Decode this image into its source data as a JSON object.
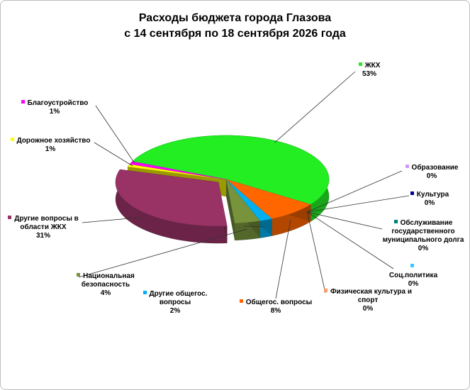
{
  "chart_data": {
    "type": "pie",
    "title": "Расходы бюджета города Глазова",
    "subtitle": "с 14 сентября по 18 сентября 2026 года",
    "categories": [
      "ЖКХ",
      "Образование",
      "Культура",
      "Обслуживание государственного муниципального долга",
      "Соц.политика",
      "Физическая культура и спорт",
      "Общегос. вопросы",
      "Другие общегос. вопросы",
      "Национальная безопасность",
      "Другие вопросы в области ЖКХ",
      "Дорожное хозяйство",
      "Благоустройство"
    ],
    "values": [
      53,
      0,
      0,
      0,
      0,
      0,
      8,
      2,
      4,
      31,
      1,
      1
    ],
    "value_labels": [
      "53%",
      "0%",
      "0%",
      "0%",
      "0%",
      "0%",
      "8%",
      "2%",
      "4%",
      "31%",
      "1%",
      "1%"
    ],
    "colors": [
      "#22ee22",
      "#cc99ff",
      "#000099",
      "#008080",
      "#33ccff",
      "#ff9966",
      "#ff6600",
      "#00b0f0",
      "#77933c",
      "#993366",
      "#ffff00",
      "#ff00ff"
    ]
  }
}
